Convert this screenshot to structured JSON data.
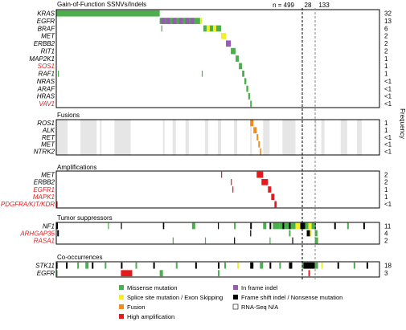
{
  "chart_data": {
    "type": "heatmap",
    "y_axis_label": "Frequency",
    "sample_counts": [
      "n = 499",
      "28",
      "133"
    ],
    "colors": {
      "missense": "#4cae4c",
      "inframe": "#9b59b6",
      "splice": "#f2ee2a",
      "frameshift": "#000000",
      "fusion": "#f08c1e",
      "amplification": "#e41a1c",
      "na": "#e6e6e6",
      "label_red": "#e41a1c"
    },
    "legend": [
      {
        "key": "missense",
        "label": "Missense mutation"
      },
      {
        "key": "inframe",
        "label": "In frame indel"
      },
      {
        "key": "splice",
        "label": "Splice site mutation / Exon Skipping"
      },
      {
        "key": "frameshift",
        "label": "Frame shift indel / Nonsense mutation"
      },
      {
        "key": "fusion",
        "label": "Fusion"
      },
      {
        "key": "na",
        "label": "RNA-Seq N/A"
      },
      {
        "key": "amplification",
        "label": "High amplification"
      }
    ],
    "panels": [
      {
        "title": "Gain-of-Function SSNVs/Indels",
        "genes": [
          {
            "name": "KRAS",
            "freq": "32",
            "red": false
          },
          {
            "name": "EGFR",
            "freq": "13",
            "red": false
          },
          {
            "name": "BRAF",
            "freq": "6",
            "red": false
          },
          {
            "name": "MET",
            "freq": "2",
            "red": false
          },
          {
            "name": "ERBB2",
            "freq": "2",
            "red": false
          },
          {
            "name": "RIT1",
            "freq": "2",
            "red": false
          },
          {
            "name": "MAP2K1",
            "freq": "1",
            "red": false
          },
          {
            "name": "SOS1",
            "freq": "1",
            "red": true
          },
          {
            "name": "RAF1",
            "freq": "1",
            "red": false
          },
          {
            "name": "NRAS",
            "freq": "<1",
            "red": false
          },
          {
            "name": "ARAF",
            "freq": "<1",
            "red": false
          },
          {
            "name": "HRAS",
            "freq": "<1",
            "red": false
          },
          {
            "name": "VAV1",
            "freq": "<1",
            "red": true
          }
        ]
      },
      {
        "title": "Fusions",
        "genes": [
          {
            "name": "ROS1",
            "freq": "1",
            "red": false
          },
          {
            "name": "ALK",
            "freq": "1",
            "red": false
          },
          {
            "name": "RET",
            "freq": "<1",
            "red": false
          },
          {
            "name": "MET",
            "freq": "<1",
            "red": false
          },
          {
            "name": "NTRK2",
            "freq": "<1",
            "red": false
          }
        ]
      },
      {
        "title": "Amplifications",
        "genes": [
          {
            "name": "MET",
            "freq": "2",
            "red": false
          },
          {
            "name": "ERBB2",
            "freq": "2",
            "red": false
          },
          {
            "name": "EGFR1",
            "freq": "1",
            "red": true
          },
          {
            "name": "MAPK1",
            "freq": "1",
            "red": true
          },
          {
            "name": "PDGFRA/KIT/KDR",
            "freq": "<1",
            "red": true
          }
        ]
      },
      {
        "title": "Tumor suppressors",
        "genes": [
          {
            "name": "NF1",
            "freq": "11",
            "red": false
          },
          {
            "name": "ARHGAP35",
            "freq": "4",
            "red": true
          },
          {
            "name": "RASA1",
            "freq": "2",
            "red": true
          }
        ]
      },
      {
        "title": "Co-occurrences",
        "genes": [
          {
            "name": "STK11",
            "freq": "18",
            "red": false
          },
          {
            "name": "EGFR",
            "freq": "3",
            "red": false
          }
        ]
      }
    ]
  }
}
